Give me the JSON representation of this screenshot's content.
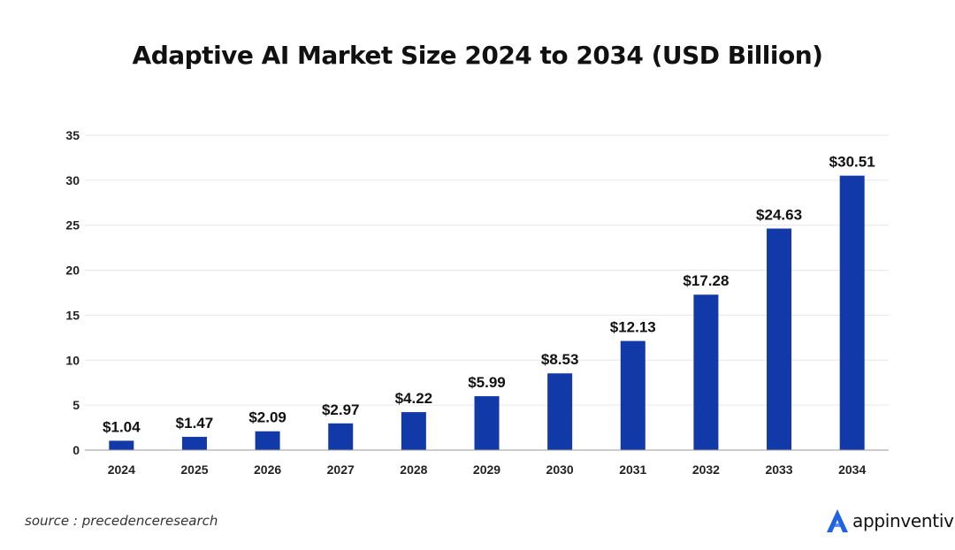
{
  "chart_data": {
    "type": "bar",
    "title": "Adaptive AI Market Size 2024 to 2034 (USD Billion)",
    "xlabel": "",
    "ylabel": "",
    "categories": [
      "2024",
      "2025",
      "2026",
      "2027",
      "2028",
      "2029",
      "2030",
      "2031",
      "2032",
      "2033",
      "2034"
    ],
    "values": [
      1.04,
      1.47,
      2.09,
      2.97,
      4.22,
      5.99,
      8.53,
      12.13,
      17.28,
      24.63,
      30.51
    ],
    "data_labels": [
      "$1.04",
      "$1.47",
      "$2.09",
      "$2.97",
      "$4.22",
      "$5.99",
      "$8.53",
      "$12.13",
      "$17.28",
      "$24.63",
      "$30.51"
    ],
    "ylim": [
      0,
      35
    ],
    "yticks": [
      0,
      5,
      10,
      15,
      20,
      25,
      30,
      35
    ],
    "grid": true,
    "legend": "none",
    "colors": {
      "bar": "#1239a8",
      "grid": "#e6e6e6",
      "axis": "#9a9a9a"
    }
  },
  "footer": {
    "source": "source : precedenceresearch",
    "brand": "appinventiv",
    "brand_icon": "appinventiv-logo-icon",
    "brand_color": "#1f63e0"
  }
}
